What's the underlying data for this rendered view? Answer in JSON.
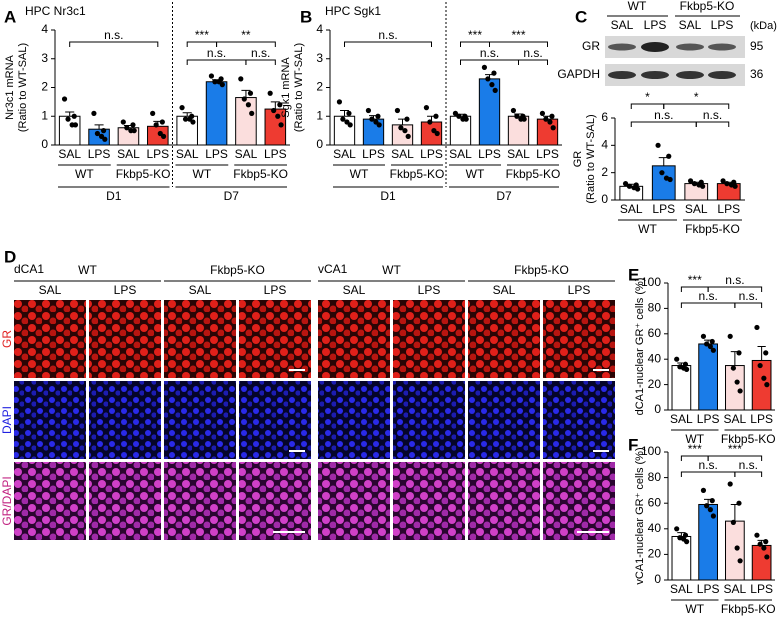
{
  "panel_labels": [
    "A",
    "B",
    "C",
    "D",
    "E",
    "F"
  ],
  "chart_data": [
    {
      "type": "bar",
      "title": "HPC Nr3c1",
      "ylabel": [
        "Nr3c1 mRNA",
        "(Ratio to WT-SAL)"
      ],
      "categories": [
        "SAL",
        "LPS",
        "SAL",
        "LPS",
        "SAL",
        "LPS",
        "SAL",
        "LPS"
      ],
      "values": [
        1.0,
        0.55,
        0.6,
        0.65,
        1.0,
        2.2,
        1.65,
        1.25
      ],
      "errors": [
        0.15,
        0.15,
        0.08,
        0.17,
        0.12,
        0.07,
        0.25,
        0.25
      ],
      "points": [
        [
          1.6,
          1.0,
          0.9,
          0.7,
          0.7
        ],
        [
          1.1,
          0.5,
          0.4,
          0.3,
          0.2
        ],
        [
          0.8,
          0.7,
          0.6,
          0.5,
          0.5
        ],
        [
          1.1,
          0.8,
          0.7,
          0.4,
          0.3
        ],
        [
          1.3,
          1.0,
          0.9,
          0.9,
          0.8
        ],
        [
          2.4,
          2.3,
          2.2,
          2.2,
          2.1
        ],
        [
          2.3,
          1.8,
          1.6,
          1.4,
          1.1
        ],
        [
          1.8,
          1.4,
          1.2,
          1.0,
          0.7
        ]
      ],
      "colors": [
        "#ffffff",
        "#1a7ce8",
        "#fbdedd",
        "#ee3b31",
        "#ffffff",
        "#1a7ce8",
        "#fbdedd",
        "#ee3b31"
      ],
      "groups": [
        "WT",
        "Fkbp5-KO",
        "WT",
        "Fkbp5-KO"
      ],
      "days": [
        "D1",
        "D7"
      ],
      "annotations": [
        "n.s.",
        "***",
        "**",
        "n.s.",
        "n.s."
      ],
      "ylim": [
        0,
        4
      ],
      "yticks": [
        0,
        1,
        2,
        3,
        4
      ]
    },
    {
      "type": "bar",
      "title": "HPC Sgk1",
      "ylabel": [
        "Sgk1 mRNA",
        "(Ratio to WT-SAL)"
      ],
      "categories": [
        "SAL",
        "LPS",
        "SAL",
        "LPS",
        "SAL",
        "LPS",
        "SAL",
        "LPS"
      ],
      "values": [
        1.0,
        0.9,
        0.7,
        0.8,
        1.0,
        2.3,
        1.0,
        0.9
      ],
      "errors": [
        0.2,
        0.12,
        0.2,
        0.2,
        0.07,
        0.15,
        0.08,
        0.1
      ],
      "points": [
        [
          1.5,
          1.1,
          0.9,
          0.8,
          0.7
        ],
        [
          1.2,
          1.0,
          0.9,
          0.8,
          0.7
        ],
        [
          1.2,
          0.9,
          0.6,
          0.5,
          0.3
        ],
        [
          1.3,
          1.0,
          0.8,
          0.5,
          0.4
        ],
        [
          1.1,
          1.0,
          1.0,
          0.9,
          0.9
        ],
        [
          2.7,
          2.5,
          2.3,
          2.1,
          1.9
        ],
        [
          1.2,
          1.0,
          1.0,
          0.9,
          0.9
        ],
        [
          1.1,
          1.0,
          0.9,
          0.8,
          0.6
        ]
      ],
      "colors": [
        "#ffffff",
        "#1a7ce8",
        "#fbdedd",
        "#ee3b31",
        "#ffffff",
        "#1a7ce8",
        "#fbdedd",
        "#ee3b31"
      ],
      "groups": [
        "WT",
        "Fkbp5-KO",
        "WT",
        "Fkbp5-KO"
      ],
      "days": [
        "D1",
        "D7"
      ],
      "annotations": [
        "n.s.",
        "***",
        "***",
        "n.s.",
        "n.s."
      ],
      "ylim": [
        0,
        4
      ],
      "yticks": [
        0,
        1,
        2,
        3,
        4
      ]
    },
    {
      "type": "bar",
      "ylabel": [
        "GR",
        "(Ratio to WT-SAL)"
      ],
      "categories": [
        "SAL",
        "LPS",
        "SAL",
        "LPS"
      ],
      "values": [
        1.0,
        2.5,
        1.2,
        1.2
      ],
      "errors": [
        0.15,
        0.6,
        0.1,
        0.1
      ],
      "points": [
        [
          1.2,
          1.1,
          1.0,
          0.9,
          0.8
        ],
        [
          4.0,
          3.2,
          2.0,
          1.6,
          1.5
        ],
        [
          1.4,
          1.3,
          1.2,
          1.1,
          1.0
        ],
        [
          1.4,
          1.3,
          1.2,
          1.1,
          1.0
        ]
      ],
      "colors": [
        "#ffffff",
        "#1a7ce8",
        "#fbdedd",
        "#ee3b31"
      ],
      "groups": [
        "WT",
        "Fkbp5-KO"
      ],
      "annotations": [
        "*",
        "*",
        "n.s.",
        "n.s."
      ],
      "ylim": [
        0,
        6
      ],
      "yticks": [
        0,
        2,
        4,
        6
      ]
    },
    {
      "type": "bar",
      "ylabel": [
        "dCA1-nuclear GR⁺ cells (%)"
      ],
      "categories": [
        "SAL",
        "LPS",
        "SAL",
        "LPS"
      ],
      "values": [
        35,
        52,
        35,
        39
      ],
      "errors": [
        2,
        3,
        11,
        11
      ],
      "points": [
        [
          40,
          36,
          34,
          33,
          32
        ],
        [
          58,
          54,
          52,
          50,
          47
        ],
        [
          58,
          45,
          33,
          22,
          15
        ],
        [
          65,
          45,
          35,
          25,
          20
        ]
      ],
      "colors": [
        "#ffffff",
        "#1a7ce8",
        "#fbdedd",
        "#ee3b31"
      ],
      "groups": [
        "WT",
        "Fkbp5-KO"
      ],
      "annotations": [
        "***",
        "n.s.",
        "n.s.",
        "n.s."
      ],
      "ylim": [
        0,
        100
      ],
      "yticks": [
        0,
        20,
        40,
        60,
        80,
        100
      ]
    },
    {
      "type": "bar",
      "ylabel": [
        "vCA1-nuclear GR⁺ cells (%)"
      ],
      "categories": [
        "SAL",
        "LPS",
        "SAL",
        "LPS"
      ],
      "values": [
        34,
        59,
        46,
        27
      ],
      "errors": [
        3,
        4,
        13,
        4
      ],
      "points": [
        [
          40,
          35,
          33,
          32,
          30
        ],
        [
          70,
          62,
          58,
          55,
          50
        ],
        [
          75,
          60,
          45,
          25,
          15
        ],
        [
          35,
          30,
          28,
          25,
          18
        ]
      ],
      "colors": [
        "#ffffff",
        "#1a7ce8",
        "#fbdedd",
        "#ee3b31"
      ],
      "groups": [
        "WT",
        "Fkbp5-KO"
      ],
      "annotations": [
        "***",
        "***",
        "n.s.",
        "n.s."
      ],
      "ylim": [
        0,
        100
      ],
      "yticks": [
        0,
        20,
        40,
        60,
        80,
        100
      ]
    }
  ],
  "blot": {
    "genotypes": [
      "WT",
      "Fkbp5-KO"
    ],
    "treatments": [
      "SAL",
      "LPS",
      "SAL",
      "LPS"
    ],
    "unit": "(kDa)",
    "rows": [
      {
        "label": "GR",
        "kda": "95"
      },
      {
        "label": "GAPDH",
        "kda": "36"
      }
    ]
  },
  "micrographs": {
    "regions": [
      "dCA1",
      "vCA1"
    ],
    "genotypes": [
      "WT",
      "Fkbp5-KO",
      "WT",
      "Fkbp5-KO"
    ],
    "treatments": [
      "SAL",
      "LPS",
      "SAL",
      "LPS",
      "SAL",
      "LPS",
      "SAL",
      "LPS"
    ],
    "stains": [
      "GR",
      "DAPI",
      "GR/DAPI"
    ]
  }
}
